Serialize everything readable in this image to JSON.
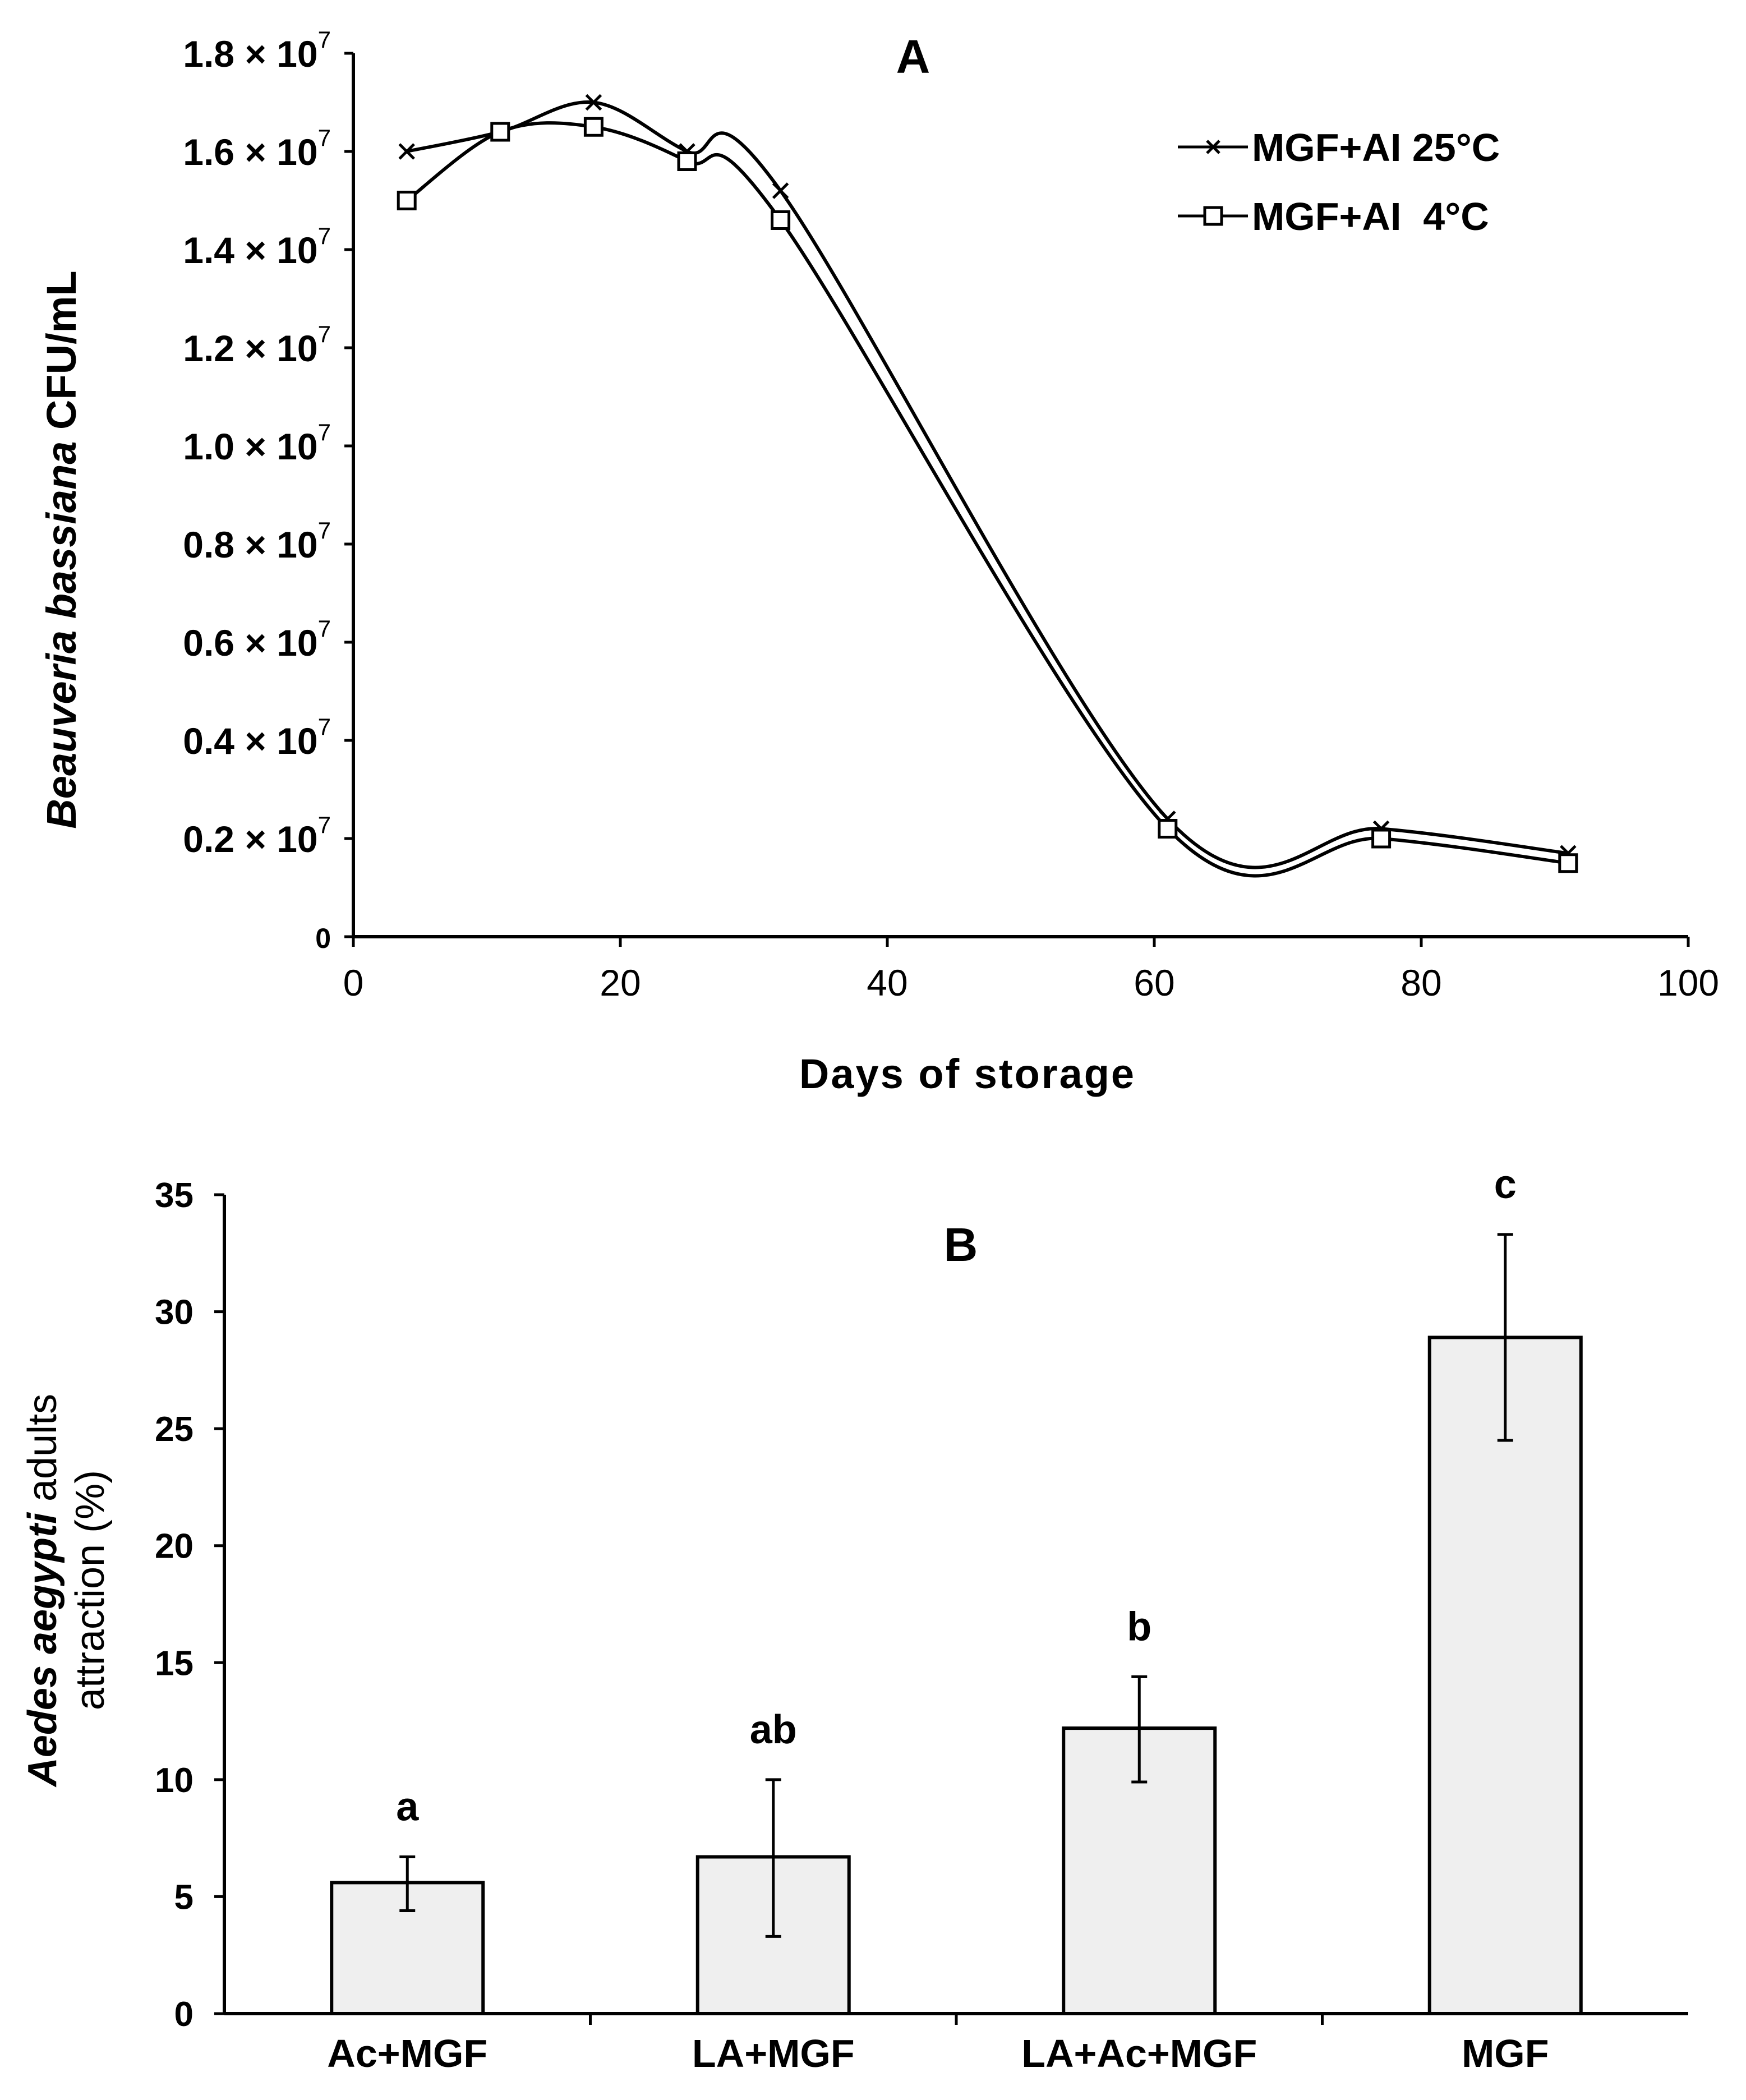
{
  "chart_data": [
    {
      "panel": "A",
      "type": "line",
      "title": "A",
      "xlabel": "Days of storage",
      "ylabel_italic": "Beauveria bassiana",
      "ylabel_rest": " CFU/mL",
      "xlim": [
        0,
        100
      ],
      "ylim": [
        0,
        18000000
      ],
      "x_ticks": [
        "0",
        "20",
        "40",
        "60",
        "80",
        "100"
      ],
      "y_ticks": [
        {
          "value": 0,
          "base": "0",
          "exp": ""
        },
        {
          "value": 2000000,
          "base": "0.2 × 10",
          "exp": "7"
        },
        {
          "value": 4000000,
          "base": "0.4 × 10",
          "exp": "7"
        },
        {
          "value": 6000000,
          "base": "0.6 × 10",
          "exp": "7"
        },
        {
          "value": 8000000,
          "base": "0.8 × 10",
          "exp": "7"
        },
        {
          "value": 10000000,
          "base": "1.0 × 10",
          "exp": "7"
        },
        {
          "value": 12000000,
          "base": "1.2 × 10",
          "exp": "7"
        },
        {
          "value": 14000000,
          "base": "1.4 × 10",
          "exp": "7"
        },
        {
          "value": 16000000,
          "base": "1.6 × 10",
          "exp": "7"
        },
        {
          "value": 18000000,
          "base": "1.8 × 10",
          "exp": "7"
        }
      ],
      "legend_position": "top-right",
      "series": [
        {
          "name": "MGF+AI 25°C",
          "marker": "x",
          "x": [
            4,
            11,
            18,
            25,
            32,
            61,
            77,
            91
          ],
          "y": [
            16000000,
            16400000,
            17000000,
            16000000,
            15200000,
            2400000,
            2200000,
            1700000
          ]
        },
        {
          "name": "MGF+AI  4°C",
          "marker": "square",
          "x": [
            4,
            11,
            18,
            25,
            32,
            61,
            77,
            91
          ],
          "y": [
            15000000,
            16400000,
            16500000,
            15800000,
            14600000,
            2200000,
            2000000,
            1500000
          ]
        }
      ]
    },
    {
      "panel": "B",
      "type": "bar",
      "title": "B",
      "xlabel": "",
      "ylabel_line1_italic": "Aedes aegypti",
      "ylabel_line1_rest": " adults",
      "ylabel_line2": "attraction (%)",
      "ylim": [
        0,
        35
      ],
      "y_ticks": [
        "0",
        "5",
        "10",
        "15",
        "20",
        "25",
        "30",
        "35"
      ],
      "categories": [
        "Ac+MGF",
        "LA+MGF",
        "LA+Ac+MGF",
        "MGF"
      ],
      "values": [
        5.6,
        6.7,
        12.2,
        28.9
      ],
      "error_low": [
        4.4,
        3.3,
        9.9,
        24.5
      ],
      "error_high": [
        6.7,
        10.0,
        14.4,
        33.3
      ],
      "significance_letters": [
        "a",
        "ab",
        "b",
        "c"
      ],
      "bar_color": "#efefef"
    }
  ]
}
